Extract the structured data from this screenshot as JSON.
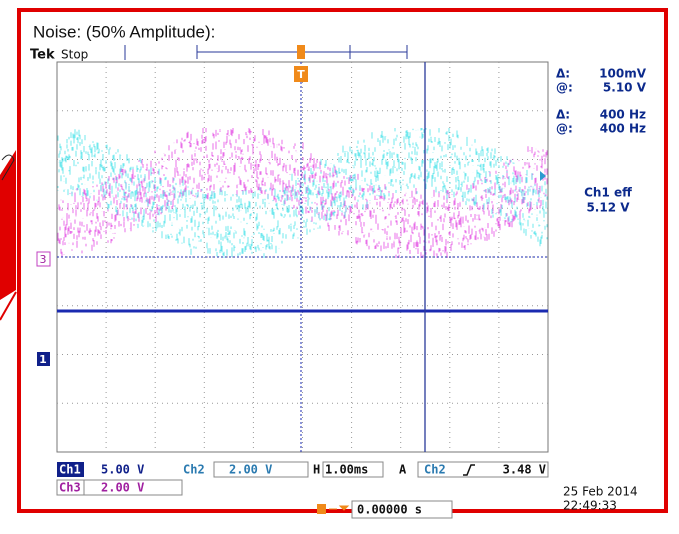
{
  "header": {
    "title": "Noise: (50% Amplitude):",
    "brand": "Tek",
    "status": "Stop"
  },
  "markers": {
    "trigger": "T",
    "ch3": "3",
    "ch1": "1"
  },
  "readouts": [
    {
      "label": "Δ:",
      "value": "100mV"
    },
    {
      "label": "@:",
      "value": "5.10 V"
    },
    {
      "label": "Δ:",
      "value": "400 Hz"
    },
    {
      "label": "@:",
      "value": "400 Hz"
    }
  ],
  "measurement": {
    "label": "Ch1 eff",
    "value": "5.12 V"
  },
  "settings": {
    "ch1": {
      "label": "Ch1",
      "value": "5.00 V"
    },
    "ch2": {
      "label": "Ch2",
      "value": "2.00 V"
    },
    "horizontal": {
      "label": "H",
      "value": "1.00ms"
    },
    "trigger": {
      "label": "A",
      "source": "Ch2",
      "level": "3.48 V"
    },
    "ch3": {
      "label": "Ch3",
      "value": "2.00 V"
    },
    "position": "0.00000 s"
  },
  "timestamp": {
    "date": "25 Feb  2014",
    "time": "22:49:33"
  }
}
